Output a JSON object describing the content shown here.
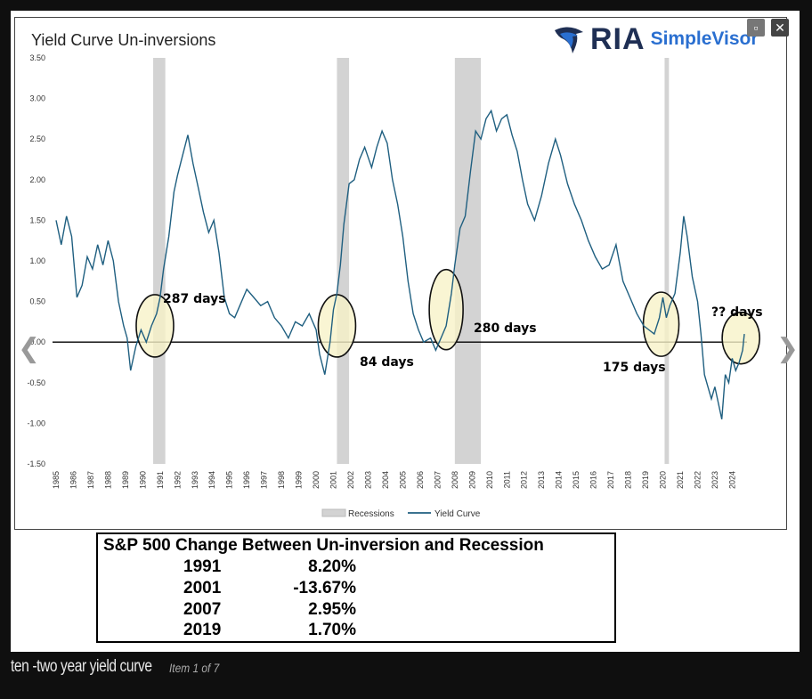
{
  "chart_data": {
    "type": "line",
    "title": "Yield Curve Un-inversions",
    "ylim": [
      -1.5,
      3.5
    ],
    "y_ticks": [
      "3.50",
      "3.00",
      "2.50",
      "2.00",
      "1.50",
      "1.00",
      "0.50",
      "0.00",
      "-0.50",
      "-1.00",
      "-1.50"
    ],
    "x_ticks": [
      "1985",
      "1986",
      "1987",
      "1988",
      "1989",
      "1990",
      "1991",
      "1992",
      "1993",
      "1994",
      "1995",
      "1996",
      "1997",
      "1998",
      "1999",
      "2000",
      "2001",
      "2002",
      "2003",
      "2004",
      "2005",
      "2006",
      "2007",
      "2008",
      "2009",
      "2010",
      "2011",
      "2012",
      "2013",
      "2014",
      "2015",
      "2016",
      "2017",
      "2018",
      "2019",
      "2020",
      "2021",
      "2022",
      "2023",
      "2024"
    ],
    "recessions": [
      [
        1990.6,
        1991.3
      ],
      [
        2001.2,
        2001.9
      ],
      [
        2008.0,
        2009.5
      ],
      [
        2020.1,
        2020.35
      ]
    ],
    "legend": [
      "Recessions",
      "Yield Curve"
    ],
    "series": [
      {
        "name": "Yield Curve",
        "x": [
          1985.0,
          1985.3,
          1985.6,
          1985.9,
          1986.2,
          1986.5,
          1986.8,
          1987.1,
          1987.4,
          1987.7,
          1988.0,
          1988.3,
          1988.6,
          1988.9,
          1989.1,
          1989.3,
          1989.6,
          1989.9,
          1990.2,
          1990.5,
          1990.8,
          1991.0,
          1991.2,
          1991.5,
          1991.8,
          1992.0,
          1992.3,
          1992.6,
          1992.9,
          1993.2,
          1993.5,
          1993.8,
          1994.1,
          1994.4,
          1994.7,
          1995.0,
          1995.3,
          1995.6,
          1996.0,
          1996.4,
          1996.8,
          1997.2,
          1997.6,
          1998.0,
          1998.4,
          1998.8,
          1999.2,
          1999.6,
          2000.0,
          2000.2,
          2000.5,
          2000.8,
          2001.0,
          2001.2,
          2001.4,
          2001.6,
          2001.9,
          2002.2,
          2002.5,
          2002.8,
          2003.2,
          2003.5,
          2003.8,
          2004.1,
          2004.4,
          2004.7,
          2005.0,
          2005.3,
          2005.6,
          2005.9,
          2006.2,
          2006.6,
          2006.9,
          2007.2,
          2007.5,
          2007.8,
          2008.0,
          2008.3,
          2008.6,
          2008.9,
          2009.2,
          2009.5,
          2009.8,
          2010.1,
          2010.4,
          2010.7,
          2011.0,
          2011.3,
          2011.6,
          2011.9,
          2012.2,
          2012.6,
          2013.0,
          2013.4,
          2013.8,
          2014.1,
          2014.5,
          2014.9,
          2015.3,
          2015.7,
          2016.1,
          2016.5,
          2016.9,
          2017.3,
          2017.7,
          2018.1,
          2018.5,
          2018.9,
          2019.2,
          2019.5,
          2019.8,
          2020.0,
          2020.2,
          2020.4,
          2020.7,
          2021.0,
          2021.2,
          2021.4,
          2021.7,
          2022.0,
          2022.2,
          2022.4,
          2022.6,
          2022.8,
          2023.0,
          2023.2,
          2023.4,
          2023.6,
          2023.8,
          2024.0,
          2024.2,
          2024.4,
          2024.6,
          2024.7
        ],
        "y": [
          1.5,
          1.2,
          1.55,
          1.3,
          0.55,
          0.7,
          1.05,
          0.9,
          1.2,
          0.95,
          1.25,
          1.0,
          0.5,
          0.2,
          0.05,
          -0.35,
          -0.05,
          0.15,
          0.0,
          0.2,
          0.35,
          0.55,
          0.9,
          1.3,
          1.85,
          2.05,
          2.3,
          2.55,
          2.2,
          1.9,
          1.6,
          1.35,
          1.5,
          1.1,
          0.55,
          0.35,
          0.3,
          0.45,
          0.65,
          0.55,
          0.45,
          0.5,
          0.3,
          0.2,
          0.05,
          0.25,
          0.2,
          0.35,
          0.15,
          -0.15,
          -0.4,
          0.0,
          0.4,
          0.6,
          0.95,
          1.45,
          1.95,
          2.0,
          2.25,
          2.4,
          2.15,
          2.4,
          2.6,
          2.45,
          2.0,
          1.7,
          1.3,
          0.75,
          0.35,
          0.15,
          0.0,
          0.05,
          -0.1,
          0.05,
          0.2,
          0.6,
          0.95,
          1.4,
          1.55,
          2.1,
          2.6,
          2.5,
          2.75,
          2.85,
          2.6,
          2.75,
          2.8,
          2.55,
          2.35,
          2.0,
          1.7,
          1.5,
          1.8,
          2.2,
          2.5,
          2.3,
          1.95,
          1.7,
          1.5,
          1.25,
          1.05,
          0.9,
          0.95,
          1.2,
          0.75,
          0.55,
          0.35,
          0.2,
          0.15,
          0.1,
          0.3,
          0.55,
          0.3,
          0.45,
          0.6,
          1.1,
          1.55,
          1.3,
          0.8,
          0.5,
          0.1,
          -0.4,
          -0.55,
          -0.7,
          -0.55,
          -0.75,
          -0.95,
          -0.4,
          -0.5,
          -0.2,
          -0.35,
          -0.25,
          -0.1,
          0.1
        ]
      }
    ],
    "annotations": [
      {
        "text": "287 days",
        "x": 1990.7,
        "y": 0.25
      },
      {
        "text": "84 days",
        "x": 2001.2,
        "y": 0.25
      },
      {
        "text": "280 days",
        "x": 2007.5,
        "y": 0.4
      },
      {
        "text": "175 days",
        "x": 2019.9,
        "y": 0.25
      },
      {
        "text": "?? days",
        "x": 2024.5,
        "y": 0.05
      }
    ]
  },
  "brand": {
    "ria": "RIA",
    "simplevisor": "SimpleVisor"
  },
  "controls": {
    "close": "✕",
    "expand": "▫",
    "prev": "❮",
    "next": "❯"
  },
  "table": {
    "title": "S&P 500 Change Between Un-inversion and Recession",
    "rows": [
      {
        "year": "1991",
        "value": "8.20%"
      },
      {
        "year": "2001",
        "value": "-13.67%"
      },
      {
        "year": "2007",
        "value": "2.95%"
      },
      {
        "year": "2019",
        "value": "1.70%"
      }
    ]
  },
  "caption": {
    "main": "ten -two year yield curve",
    "item": "Item 1 of 7"
  },
  "colors": {
    "line": "#1f5f80",
    "recession": "#d3d3d3",
    "ellipse_fill": "#f7f3c8"
  }
}
